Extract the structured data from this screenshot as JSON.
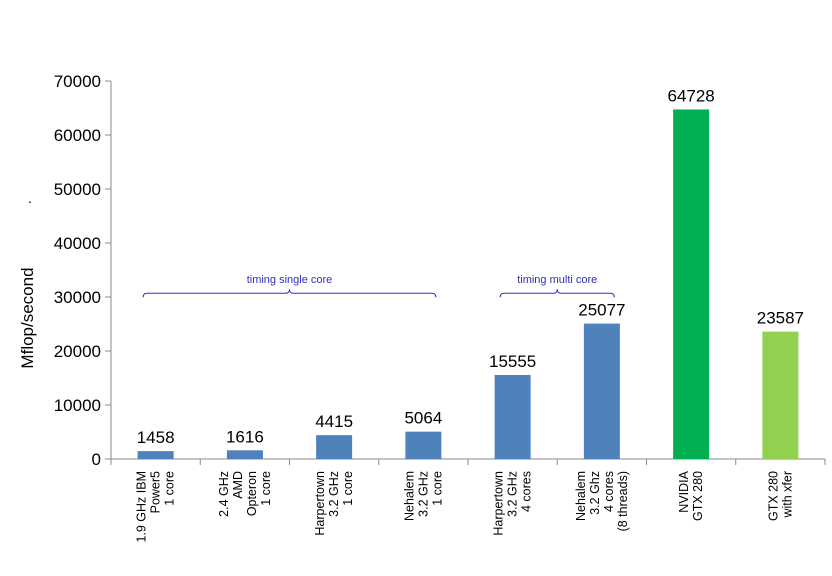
{
  "chart_data": {
    "type": "bar",
    "title": "",
    "xlabel": "",
    "ylabel": "Mflop/second",
    "ylim": [
      0,
      70000
    ],
    "yticks": [
      0,
      10000,
      20000,
      30000,
      40000,
      50000,
      60000,
      70000
    ],
    "grid": false,
    "legend": "none",
    "stray_mark": ".",
    "categories": [
      [
        "1.9 GHz IBM",
        "Power5",
        "1 core"
      ],
      [
        "2.4 GHz",
        "AMD",
        "Opteron",
        "1 core"
      ],
      [
        "Harpertown",
        "3.2 GHz",
        "1 core"
      ],
      [
        "Nehalem",
        "3.2 GHz",
        "1 core"
      ],
      [
        "Harpertown",
        "3.2 GHz",
        "4 cores"
      ],
      [
        "Nehalem",
        "3.2 Ghz",
        "4 cores",
        "(8 threads)"
      ],
      [
        "NVIDIA",
        "GTX 280"
      ],
      [
        "GTX 280",
        "with xfer"
      ]
    ],
    "values": [
      1458,
      1616,
      4415,
      5064,
      15555,
      25077,
      64728,
      23587
    ],
    "value_labels": [
      "1458",
      "1616",
      "4415",
      "5064",
      "15555",
      "25077",
      "64728",
      "23587"
    ],
    "colors": [
      "#4f81bd",
      "#4f81bd",
      "#4f81bd",
      "#4f81bd",
      "#4f81bd",
      "#4f81bd",
      "#00b050",
      "#92d050"
    ],
    "annotations": [
      {
        "text": "timing single core",
        "from_category": 0,
        "to_category": 3,
        "at_value": 30700
      },
      {
        "text": "timing multi core",
        "from_category": 4,
        "to_category": 5,
        "at_value": 30700
      }
    ]
  }
}
